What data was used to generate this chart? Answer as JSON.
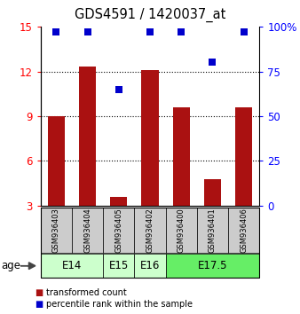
{
  "title": "GDS4591 / 1420037_at",
  "samples": [
    "GSM936403",
    "GSM936404",
    "GSM936405",
    "GSM936402",
    "GSM936400",
    "GSM936401",
    "GSM936406"
  ],
  "transformed_counts": [
    9.0,
    12.3,
    3.6,
    12.1,
    9.6,
    4.8,
    9.6
  ],
  "percentile_ranks": [
    97,
    97,
    65,
    97,
    97,
    80,
    97
  ],
  "age_groups": [
    {
      "label": "E14",
      "samples": [
        "GSM936403",
        "GSM936404"
      ],
      "color": "#ccffcc"
    },
    {
      "label": "E15",
      "samples": [
        "GSM936405"
      ],
      "color": "#ccffcc"
    },
    {
      "label": "E16",
      "samples": [
        "GSM936402"
      ],
      "color": "#ccffcc"
    },
    {
      "label": "E17.5",
      "samples": [
        "GSM936400",
        "GSM936401",
        "GSM936406"
      ],
      "color": "#66ee66"
    }
  ],
  "ylim_left": [
    3,
    15
  ],
  "ylim_right": [
    0,
    100
  ],
  "yticks_left": [
    3,
    6,
    9,
    12,
    15
  ],
  "yticks_right": [
    0,
    25,
    50,
    75,
    100
  ],
  "ytick_labels_right": [
    "0",
    "25",
    "50",
    "75",
    "100%"
  ],
  "bar_color": "#aa1111",
  "dot_color": "#0000cc",
  "bar_width": 0.55,
  "dot_size": 28,
  "sample_box_color": "#cccccc",
  "grid_dotted_at": [
    6,
    9,
    12
  ]
}
